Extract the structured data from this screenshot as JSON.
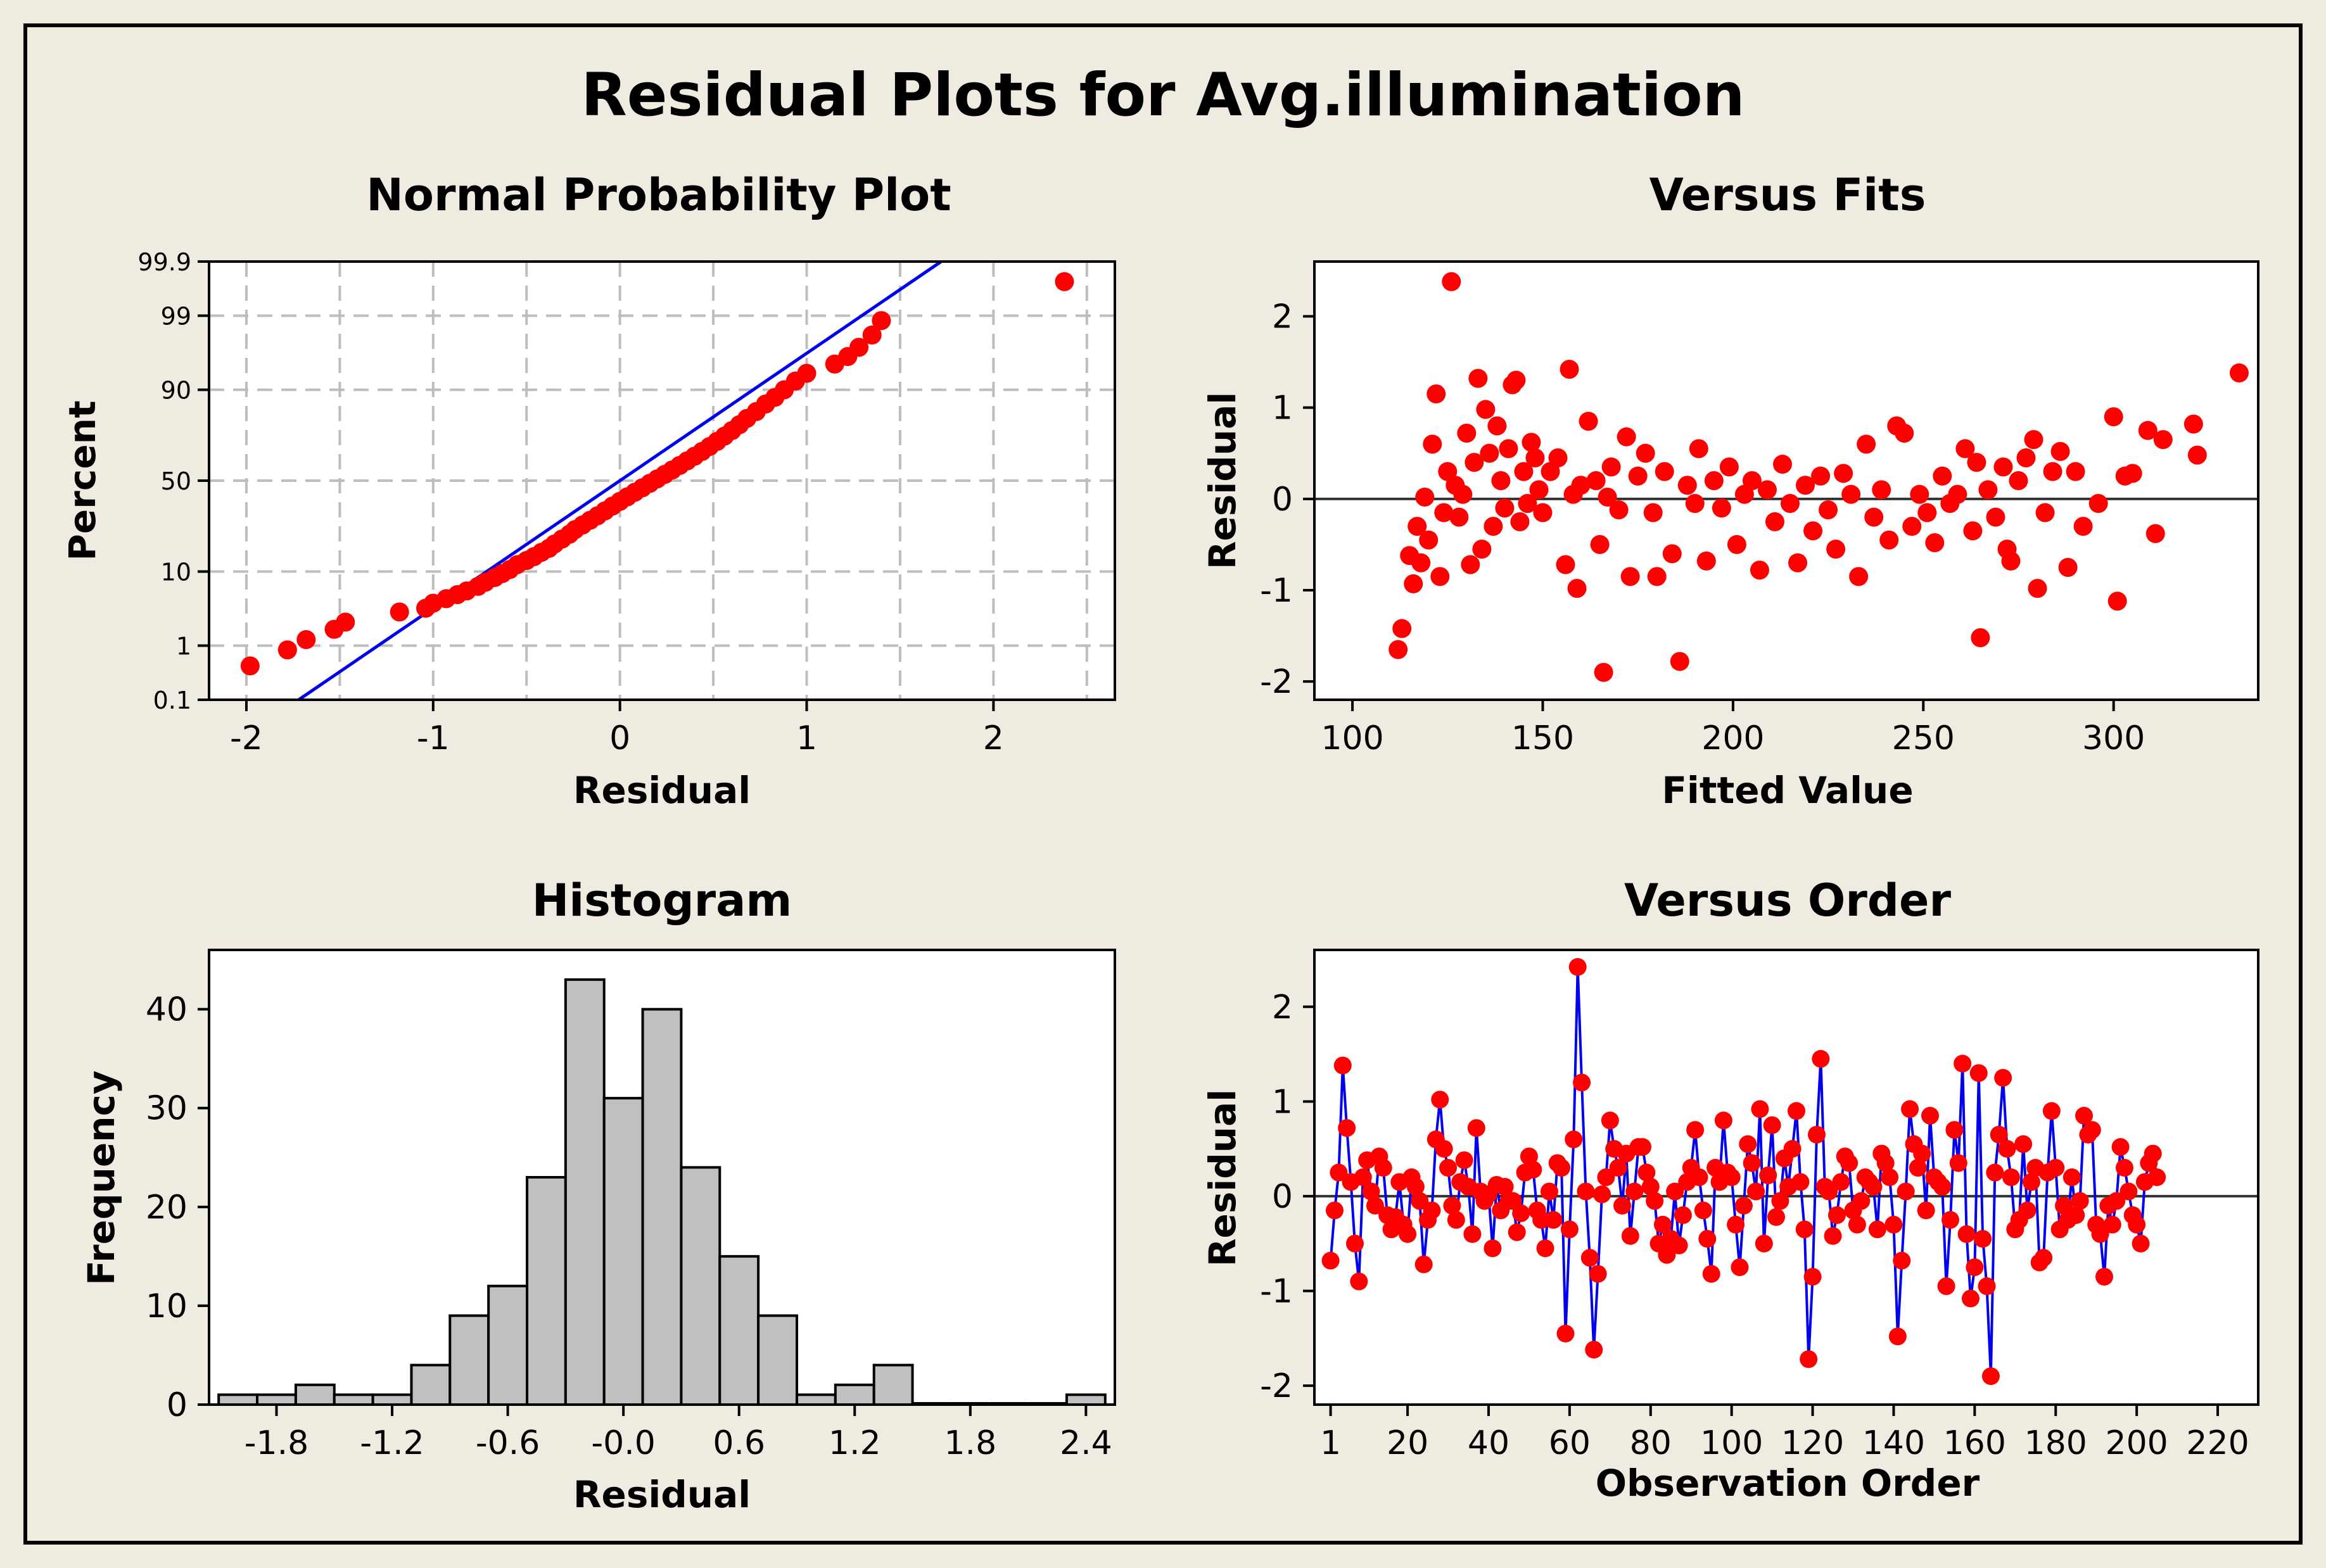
{
  "title": "Residual Plots for Avg.illumination",
  "colors": {
    "background": "#efebe1",
    "plot_bg": "#ffffff",
    "point": "#ff0000",
    "line": "#0000ee",
    "bar": "#c0c0c0",
    "grid": "#bdbdbd"
  },
  "chart_data": [
    {
      "id": "normal",
      "type": "scatter",
      "title": "Normal Probability Plot",
      "xlabel": "Residual",
      "ylabel": "Percent",
      "xlim": [
        -2.2,
        2.65
      ],
      "xticks": [
        "-2",
        "-1",
        "0",
        "1",
        "2"
      ],
      "yticks": [
        "0.1",
        "1",
        "10",
        "50",
        "90",
        "99",
        "99.9"
      ],
      "grid": "dashed",
      "fit_line": {
        "x": [
          -1.72,
          1.72
        ],
        "y": [
          0.1,
          99.9
        ]
      },
      "points": [
        [
          -1.98,
          0.45
        ],
        [
          -1.78,
          0.85
        ],
        [
          -1.68,
          1.25
        ],
        [
          -1.53,
          1.8
        ],
        [
          -1.47,
          2.3
        ],
        [
          -1.18,
          3.2
        ],
        [
          -1.04,
          3.6
        ],
        [
          -1.0,
          4.2
        ],
        [
          -0.93,
          4.8
        ],
        [
          -0.87,
          5.4
        ],
        [
          -0.82,
          6.0
        ],
        [
          -0.76,
          6.8
        ],
        [
          -0.72,
          7.6
        ],
        [
          -0.67,
          8.6
        ],
        [
          -0.63,
          9.5
        ],
        [
          -0.59,
          10.5
        ],
        [
          -0.55,
          11.8
        ],
        [
          -0.5,
          13.0
        ],
        [
          -0.46,
          14.2
        ],
        [
          -0.42,
          15.6
        ],
        [
          -0.38,
          17.0
        ],
        [
          -0.35,
          18.6
        ],
        [
          -0.31,
          20.5
        ],
        [
          -0.27,
          22.5
        ],
        [
          -0.24,
          24.5
        ],
        [
          -0.2,
          26.6
        ],
        [
          -0.16,
          28.8
        ],
        [
          -0.12,
          31.0
        ],
        [
          -0.08,
          33.5
        ],
        [
          -0.04,
          36.0
        ],
        [
          0.0,
          38.5
        ],
        [
          0.04,
          41.0
        ],
        [
          0.08,
          43.5
        ],
        [
          0.12,
          46.0
        ],
        [
          0.16,
          48.5
        ],
        [
          0.2,
          51.0
        ],
        [
          0.24,
          53.5
        ],
        [
          0.28,
          56.0
        ],
        [
          0.32,
          58.5
        ],
        [
          0.36,
          61.0
        ],
        [
          0.4,
          63.5
        ],
        [
          0.44,
          66.0
        ],
        [
          0.48,
          68.5
        ],
        [
          0.52,
          71.0
        ],
        [
          0.56,
          73.5
        ],
        [
          0.6,
          76.0
        ],
        [
          0.64,
          78.5
        ],
        [
          0.68,
          81.0
        ],
        [
          0.73,
          83.5
        ],
        [
          0.78,
          86.0
        ],
        [
          0.83,
          88.0
        ],
        [
          0.88,
          90.0
        ],
        [
          0.94,
          92.0
        ],
        [
          1.0,
          93.5
        ],
        [
          1.15,
          95.0
        ],
        [
          1.22,
          96.0
        ],
        [
          1.28,
          97.0
        ],
        [
          1.35,
          98.0
        ],
        [
          1.4,
          98.8
        ],
        [
          2.38,
          99.75
        ]
      ]
    },
    {
      "id": "fits",
      "type": "scatter",
      "title": "Versus Fits",
      "xlabel": "Fitted Value",
      "ylabel": "Residual",
      "xlim": [
        90,
        338
      ],
      "ylim": [
        -2.2,
        2.6
      ],
      "xticks": [
        "100",
        "150",
        "200",
        "250",
        "300"
      ],
      "yticks": [
        "-2",
        "-1",
        "0",
        "1",
        "2"
      ],
      "reference_line": 0,
      "points": [
        [
          112,
          -1.65
        ],
        [
          113,
          -1.42
        ],
        [
          115,
          -0.62
        ],
        [
          116,
          -0.93
        ],
        [
          117,
          -0.3
        ],
        [
          118,
          -0.7
        ],
        [
          119,
          0.02
        ],
        [
          120,
          -0.45
        ],
        [
          121,
          0.6
        ],
        [
          122,
          1.15
        ],
        [
          123,
          -0.85
        ],
        [
          124,
          -0.15
        ],
        [
          125,
          0.3
        ],
        [
          126,
          2.38
        ],
        [
          127,
          0.15
        ],
        [
          128,
          -0.2
        ],
        [
          129,
          0.05
        ],
        [
          130,
          0.72
        ],
        [
          131,
          -0.72
        ],
        [
          132,
          0.4
        ],
        [
          133,
          1.32
        ],
        [
          134,
          -0.55
        ],
        [
          135,
          0.98
        ],
        [
          136,
          0.5
        ],
        [
          137,
          -0.3
        ],
        [
          138,
          0.8
        ],
        [
          139,
          0.2
        ],
        [
          140,
          -0.1
        ],
        [
          141,
          0.55
        ],
        [
          142,
          1.25
        ],
        [
          143,
          1.3
        ],
        [
          144,
          -0.25
        ],
        [
          145,
          0.3
        ],
        [
          146,
          -0.05
        ],
        [
          147,
          0.62
        ],
        [
          148,
          0.45
        ],
        [
          149,
          0.1
        ],
        [
          150,
          -0.15
        ],
        [
          152,
          0.3
        ],
        [
          154,
          0.45
        ],
        [
          156,
          -0.72
        ],
        [
          157,
          1.42
        ],
        [
          158,
          0.05
        ],
        [
          159,
          -0.98
        ],
        [
          160,
          0.15
        ],
        [
          162,
          0.85
        ],
        [
          164,
          0.2
        ],
        [
          165,
          -0.5
        ],
        [
          166,
          -1.9
        ],
        [
          167,
          0.02
        ],
        [
          168,
          0.35
        ],
        [
          170,
          -0.12
        ],
        [
          172,
          0.68
        ],
        [
          173,
          -0.85
        ],
        [
          175,
          0.25
        ],
        [
          177,
          0.5
        ],
        [
          179,
          -0.15
        ],
        [
          180,
          -0.85
        ],
        [
          182,
          0.3
        ],
        [
          184,
          -0.6
        ],
        [
          186,
          -1.78
        ],
        [
          188,
          0.15
        ],
        [
          190,
          -0.05
        ],
        [
          191,
          0.55
        ],
        [
          193,
          -0.68
        ],
        [
          195,
          0.2
        ],
        [
          197,
          -0.1
        ],
        [
          199,
          0.35
        ],
        [
          201,
          -0.5
        ],
        [
          203,
          0.05
        ],
        [
          205,
          0.2
        ],
        [
          207,
          -0.78
        ],
        [
          209,
          0.1
        ],
        [
          211,
          -0.25
        ],
        [
          213,
          0.38
        ],
        [
          215,
          -0.05
        ],
        [
          217,
          -0.7
        ],
        [
          219,
          0.15
        ],
        [
          221,
          -0.35
        ],
        [
          223,
          0.25
        ],
        [
          225,
          -0.12
        ],
        [
          227,
          -0.55
        ],
        [
          229,
          0.28
        ],
        [
          231,
          0.05
        ],
        [
          233,
          -0.85
        ],
        [
          235,
          0.6
        ],
        [
          237,
          -0.2
        ],
        [
          239,
          0.1
        ],
        [
          241,
          -0.45
        ],
        [
          243,
          0.8
        ],
        [
          245,
          0.72
        ],
        [
          247,
          -0.3
        ],
        [
          249,
          0.05
        ],
        [
          251,
          -0.15
        ],
        [
          253,
          -0.48
        ],
        [
          255,
          0.25
        ],
        [
          257,
          -0.05
        ],
        [
          259,
          0.05
        ],
        [
          261,
          0.55
        ],
        [
          263,
          -0.35
        ],
        [
          264,
          0.4
        ],
        [
          265,
          -1.52
        ],
        [
          267,
          0.1
        ],
        [
          269,
          -0.2
        ],
        [
          271,
          0.35
        ],
        [
          272,
          -0.55
        ],
        [
          273,
          -0.68
        ],
        [
          275,
          0.2
        ],
        [
          277,
          0.45
        ],
        [
          279,
          0.65
        ],
        [
          280,
          -0.98
        ],
        [
          282,
          -0.15
        ],
        [
          284,
          0.3
        ],
        [
          286,
          0.52
        ],
        [
          288,
          -0.75
        ],
        [
          290,
          0.3
        ],
        [
          292,
          -0.3
        ],
        [
          296,
          -0.05
        ],
        [
          300,
          0.9
        ],
        [
          301,
          -1.12
        ],
        [
          303,
          0.25
        ],
        [
          305,
          0.28
        ],
        [
          309,
          0.75
        ],
        [
          311,
          -0.38
        ],
        [
          313,
          0.65
        ],
        [
          321,
          0.82
        ],
        [
          322,
          0.48
        ],
        [
          333,
          1.38
        ]
      ]
    },
    {
      "id": "histogram",
      "type": "bar",
      "title": "Histogram",
      "xlabel": "Residual",
      "ylabel": "Frequency",
      "xlim": [
        -2.15,
        2.55
      ],
      "ylim": [
        0,
        46
      ],
      "xticks": [
        "-1.8",
        "-1.2",
        "-0.6",
        "-0.0",
        "0.6",
        "1.2",
        "1.8",
        "2.4"
      ],
      "yticks": [
        "0",
        "10",
        "20",
        "30",
        "40"
      ],
      "bin_width": 0.2,
      "bin_start": -2.1,
      "values": [
        1,
        1,
        2,
        1,
        1,
        4,
        9,
        12,
        23,
        43,
        31,
        40,
        24,
        15,
        9,
        1,
        2,
        4,
        0,
        0,
        0,
        0,
        1
      ]
    },
    {
      "id": "order",
      "type": "line",
      "title": "Versus Order",
      "xlabel": "Observation Order",
      "ylabel": "Residual",
      "xlim": [
        -3,
        230
      ],
      "ylim": [
        -2.2,
        2.6
      ],
      "xticks": [
        "1",
        "20",
        "40",
        "60",
        "80",
        "100",
        "120",
        "140",
        "160",
        "180",
        "200",
        "220"
      ],
      "yticks": [
        "-2",
        "-1",
        "0",
        "1",
        "2"
      ],
      "reference_line": 0,
      "values": [
        -0.68,
        -0.15,
        0.25,
        1.38,
        0.72,
        0.15,
        -0.5,
        -0.9,
        0.2,
        0.38,
        0.05,
        -0.1,
        0.42,
        0.3,
        -0.2,
        -0.35,
        -0.22,
        0.15,
        -0.3,
        -0.4,
        0.2,
        0.1,
        -0.05,
        -0.72,
        -0.25,
        -0.15,
        0.6,
        1.02,
        0.5,
        0.3,
        -0.1,
        -0.25,
        0.15,
        0.38,
        0.1,
        -0.4,
        0.72,
        0.05,
        -0.05,
        0.02,
        -0.55,
        0.12,
        -0.15,
        0.1,
        -0.05,
        -0.05,
        -0.38,
        -0.18,
        0.25,
        0.42,
        0.28,
        -0.15,
        -0.25,
        -0.55,
        0.05,
        -0.25,
        0.35,
        0.3,
        -1.45,
        -0.35,
        0.6,
        2.42,
        1.2,
        0.05,
        -0.65,
        -1.62,
        -0.82,
        0.02,
        0.2,
        0.8,
        0.5,
        0.3,
        -0.1,
        0.45,
        -0.42,
        0.05,
        0.52,
        0.52,
        0.25,
        0.1,
        -0.05,
        -0.5,
        -0.3,
        -0.62,
        -0.45,
        0.05,
        -0.52,
        -0.2,
        0.15,
        0.3,
        0.7,
        0.2,
        -0.15,
        -0.45,
        -0.82,
        0.3,
        0.15,
        0.8,
        0.25,
        0.2,
        -0.3,
        -0.75,
        -0.1,
        0.55,
        0.35,
        0.05,
        0.92,
        -0.5,
        0.22,
        0.75,
        -0.22,
        -0.05,
        0.4,
        0.1,
        0.5,
        0.9,
        0.15,
        -0.35,
        -1.72,
        -0.85,
        0.65,
        1.45,
        0.1,
        0.05,
        -0.42,
        -0.2,
        0.15,
        0.42,
        0.35,
        -0.15,
        -0.3,
        -0.05,
        0.2,
        0.15,
        0.1,
        -0.35,
        0.45,
        0.35,
        0.2,
        -0.3,
        -1.48,
        -0.68,
        0.05,
        0.92,
        0.55,
        0.3,
        0.45,
        -0.15,
        0.85,
        0.2,
        0.15,
        0.1,
        -0.95,
        -0.25,
        0.7,
        0.35,
        1.4,
        -0.4,
        -1.08,
        -0.75,
        1.3,
        -0.45,
        -0.95,
        -1.9,
        0.25,
        0.65,
        1.25,
        0.5,
        0.2,
        -0.35,
        -0.25,
        0.55,
        -0.15,
        0.15,
        0.3,
        -0.7,
        -0.65,
        0.25,
        0.9,
        0.3,
        -0.35,
        -0.1,
        -0.25,
        0.2,
        -0.2,
        -0.05,
        0.85,
        0.65,
        0.7,
        -0.3,
        -0.4,
        -0.85,
        -0.1,
        -0.3,
        -0.05,
        0.52,
        0.3,
        0.05,
        -0.2,
        -0.3,
        -0.5,
        0.15,
        0.35,
        0.45,
        0.2
      ]
    }
  ]
}
